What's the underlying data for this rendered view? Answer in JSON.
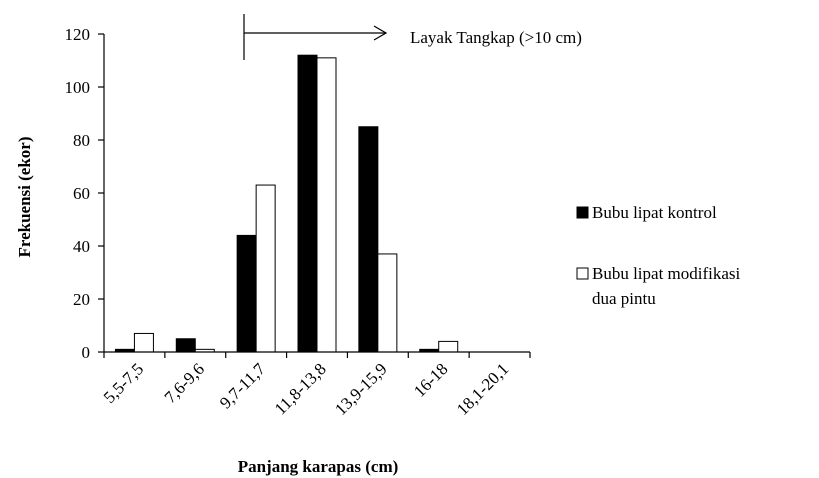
{
  "chart_data": {
    "type": "bar",
    "categories": [
      "5,5-7,5",
      "7,6-9,6",
      "9,7-11,7",
      "11,8-13,8",
      "13,9-15,9",
      "16-18",
      "18,1-20,1"
    ],
    "series": [
      {
        "name": "Bubu lipat kontrol",
        "values": [
          1,
          5,
          44,
          112,
          85,
          1,
          0
        ],
        "color": "#000000"
      },
      {
        "name": "Bubu lipat modifikasi dua pintu",
        "values": [
          7,
          1,
          63,
          111,
          37,
          4,
          0
        ],
        "color": "#ffffff"
      }
    ],
    "xlabel": "Panjang karapas (cm)",
    "ylabel": "Frekuensi (ekor)",
    "ylim": [
      0,
      120
    ],
    "yticks": [
      "0",
      "20",
      "40",
      "60",
      "80",
      "100",
      "120"
    ],
    "grid": false,
    "legend_position": "right",
    "annotation": {
      "text": "Layak Tangkap (>10 cm)",
      "arrow_direction": "right"
    }
  }
}
